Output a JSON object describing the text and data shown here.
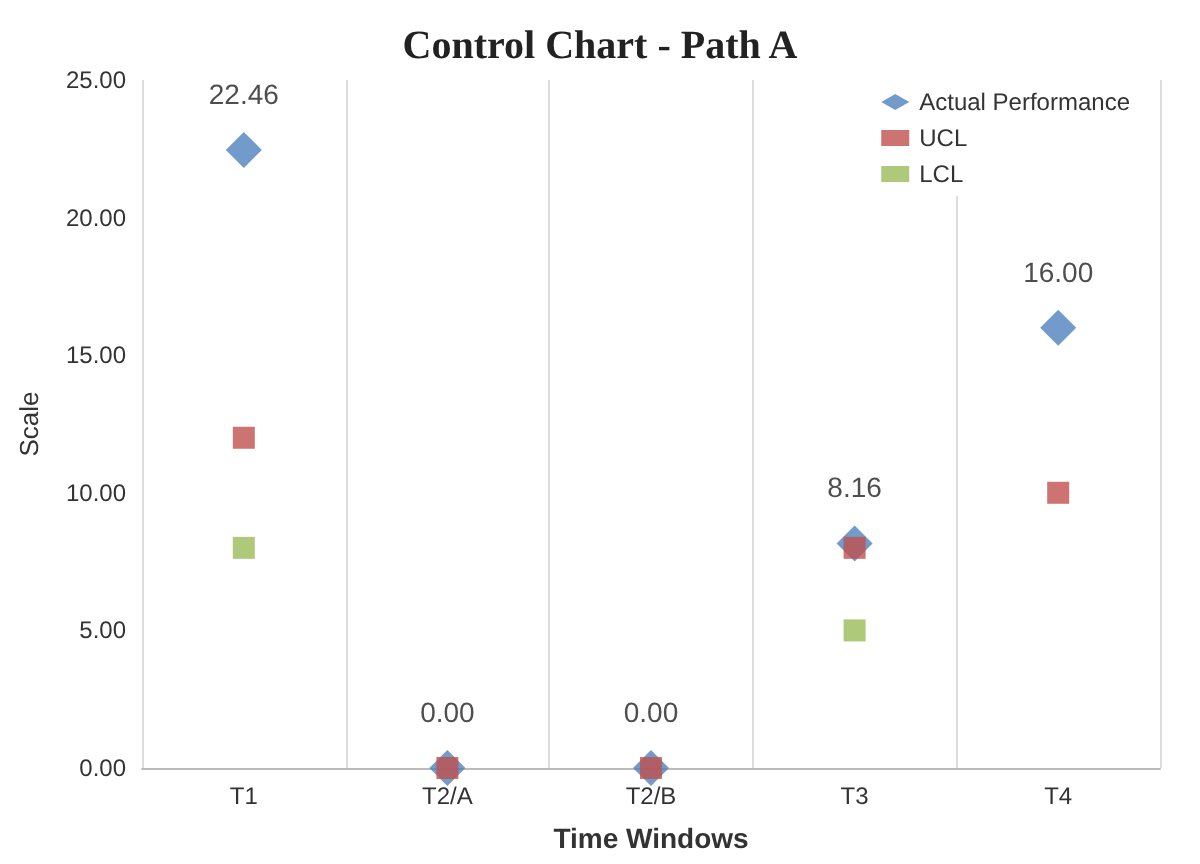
{
  "chart_data": {
    "type": "scatter",
    "title": "Control Chart - Path A",
    "xlabel": "Time Windows",
    "ylabel": "Scale",
    "categories": [
      "T1",
      "T2/A",
      "T2/B",
      "T3",
      "T4"
    ],
    "series": [
      {
        "name": "Actual Performance",
        "color": "#4f81bd",
        "marker": "diamond",
        "values": [
          22.46,
          0,
          0,
          8.16,
          16
        ],
        "value_labels": [
          "22.46",
          "0.00",
          "0.00",
          "8.16",
          "16.00"
        ]
      },
      {
        "name": "UCL",
        "color": "#c0504d",
        "marker": "square",
        "values": [
          12,
          0,
          0,
          8,
          10
        ]
      },
      {
        "name": "LCL",
        "color": "#9bbb59",
        "marker": "square",
        "values": [
          8,
          null,
          null,
          5,
          null
        ]
      }
    ],
    "ylim": [
      0,
      25
    ],
    "yticks": [
      {
        "value": 0,
        "label": "0.00"
      },
      {
        "value": 5,
        "label": "5.00"
      },
      {
        "value": 10,
        "label": "10.00"
      },
      {
        "value": 15,
        "label": "15.00"
      },
      {
        "value": 20,
        "label": "20.00"
      },
      {
        "value": 25,
        "label": "25.00"
      }
    ],
    "grid": "x",
    "legend": "top right"
  }
}
